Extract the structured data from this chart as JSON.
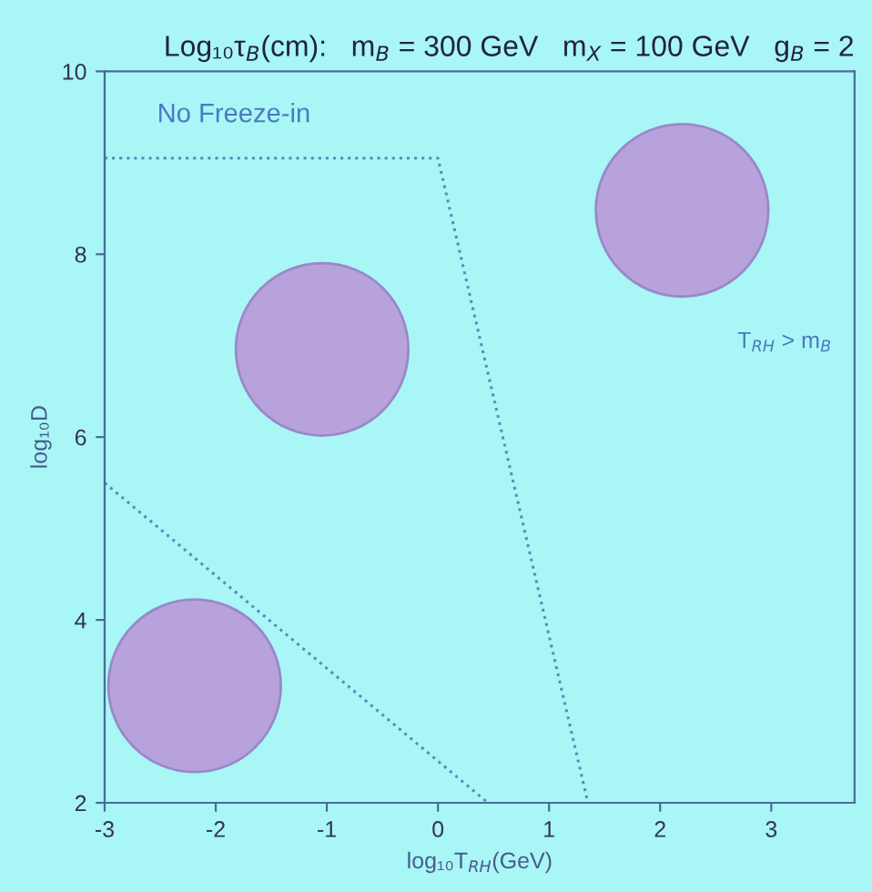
{
  "chart_data": {
    "type": "line",
    "title": "Log₁₀τ$_{B}$(cm):   m$_{B}$ = 300 GeV   m$_{X}$ = 100 GeV   g$_{B}$ = 2",
    "xlabel": "log₁₀T$_{RH}$(GeV)",
    "ylabel": "log₁₀D",
    "series": [
      {
        "color": "#5a8ab8",
        "x": [
          -3,
          0.45
        ],
        "values": [
          5.5,
          2
        ]
      },
      {
        "color": "#5a8ab8",
        "x": [
          -3,
          0,
          1.35
        ],
        "values": [
          9.05,
          9.05,
          2
        ]
      }
    ],
    "line_style": "dotted",
    "marker": "none",
    "xlim": [
      -3,
      3.75
    ],
    "ylim": [
      2,
      10
    ],
    "xticks": [
      -3,
      -2,
      -1,
      0,
      1,
      2,
      3
    ],
    "yticks": [
      2,
      4,
      6,
      8,
      10
    ],
    "grid": false,
    "annotations": [
      "No Freeze-in",
      "T$_{RH}$ > m$_{B}$"
    ]
  }
}
